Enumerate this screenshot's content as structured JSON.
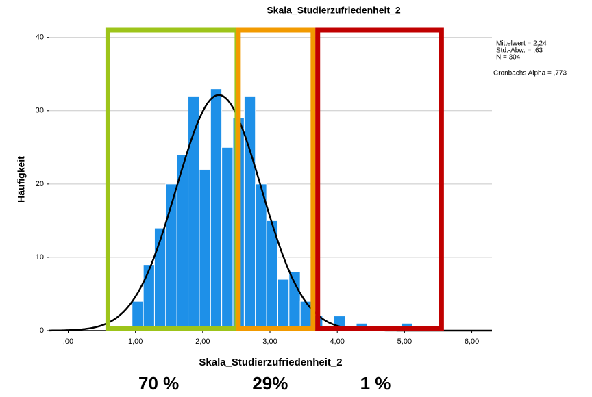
{
  "chart_data": {
    "type": "histogram",
    "title": "Skala_Studierzufriedenheit_2",
    "xlabel": "Skala_Studierzufriedenheit_2",
    "ylabel": "Häufigkeit",
    "bins": [
      0.95,
      1.117,
      1.283,
      1.45,
      1.617,
      1.783,
      1.95,
      2.117,
      2.283,
      2.45,
      2.617,
      2.783,
      2.95,
      3.117,
      3.283,
      3.45,
      3.617,
      3.783,
      3.95,
      4.117,
      4.283,
      4.45,
      4.617,
      4.783,
      4.95,
      5.117
    ],
    "values": [
      4,
      9,
      14,
      20,
      24,
      32,
      22,
      33,
      25,
      29,
      32,
      20,
      15,
      7,
      8,
      4,
      2,
      0,
      2,
      0,
      1,
      0,
      0,
      0,
      1
    ],
    "color": "#1e90e8",
    "normal_curve": {
      "mean": 2.24,
      "sd": 0.63,
      "n": 304,
      "color": "#000000"
    },
    "stats": [
      "Mittelwert = 2,24",
      "Std.-Abw. = ,63",
      "N = 304"
    ],
    "note": "Cronbachs Alpha = ,773",
    "regions": [
      {
        "label": "70 %",
        "color": "#9dc41a",
        "x": [
          0.59,
          2.51
        ]
      },
      {
        "label": "29%",
        "color": "#f29a00",
        "x": [
          2.53,
          3.64
        ]
      },
      {
        "label": "1 %",
        "color": "#c00000",
        "x": [
          3.71,
          5.55
        ]
      }
    ],
    "xlim": [
      -0.28,
      6.3
    ],
    "ylim": [
      0,
      41
    ],
    "xticks": [
      {
        "value": 0,
        "label": ",00"
      },
      {
        "value": 1,
        "label": "1,00"
      },
      {
        "value": 2,
        "label": "2,00"
      },
      {
        "value": 3,
        "label": "3,00"
      },
      {
        "value": 4,
        "label": "4,00"
      },
      {
        "value": 5,
        "label": "5,00"
      },
      {
        "value": 6,
        "label": "6,00"
      }
    ],
    "yticks": [
      0,
      10,
      20,
      30,
      40
    ],
    "grid": true
  }
}
